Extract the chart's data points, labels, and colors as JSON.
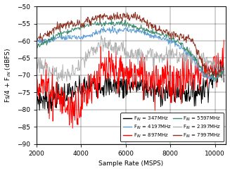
{
  "xlabel": "Sample Rate (MSPS)",
  "ylabel": "Fs/4 + F$_{IN}$ (dBFS)",
  "xlim": [
    2000,
    10500
  ],
  "ylim": [
    -90,
    -50
  ],
  "xticks": [
    2000,
    4000,
    6000,
    8000,
    10000
  ],
  "yticks": [
    -90,
    -85,
    -80,
    -75,
    -70,
    -65,
    -60,
    -55,
    -50
  ],
  "colors": {
    "347MHz": "#000000",
    "897MHz": "#ff0000",
    "2397MHz": "#b0b0b0",
    "4197MHz": "#5b9bd5",
    "5597MHz": "#3a8a6e",
    "7997MHz": "#8b3020"
  },
  "legend": [
    [
      "F$_{IN}$ = 347MHz",
      "347MHz"
    ],
    [
      "F$_{IN}$ = 4197MHz",
      "4197MHz"
    ],
    [
      "F$_{IN}$ = 897MHz",
      "897MHz"
    ],
    [
      "F$_{IN}$ = 5597MHz",
      "5597MHz"
    ],
    [
      "F$_{IN}$ = 2397MHz",
      "2397MHz"
    ],
    [
      "F$_{IN}$ = 7997MHz",
      "7997MHz"
    ]
  ]
}
